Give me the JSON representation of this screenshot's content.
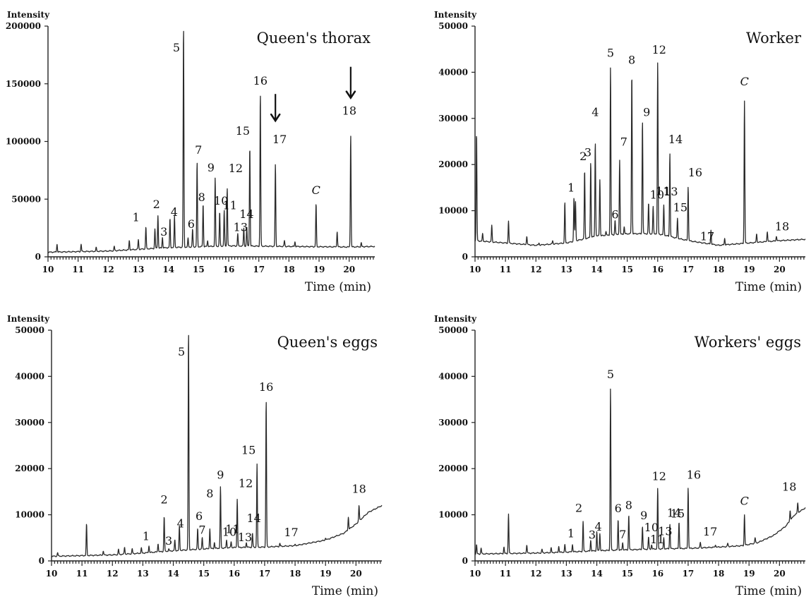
{
  "chart_data": [
    {
      "type": "line",
      "title": "Queen's thorax",
      "xlabel": "Time (min)",
      "ylabel": "Intensity",
      "xlim": [
        10,
        20.85
      ],
      "ylim": [
        0,
        200000
      ],
      "xticks": [
        "10",
        "11",
        "12",
        "13",
        "14",
        "15",
        "16",
        "17",
        "18",
        "19",
        "20"
      ],
      "yticks": [
        "0",
        "50000",
        "100000",
        "150000",
        "200000"
      ],
      "baseline": [
        [
          10,
          4000
        ],
        [
          12,
          5000
        ],
        [
          13,
          6500
        ],
        [
          14,
          8000
        ],
        [
          16,
          9500
        ],
        [
          18,
          9000
        ],
        [
          20,
          8500
        ],
        [
          20.85,
          9000
        ]
      ],
      "peaks": [
        {
          "x": 10.3,
          "y": 11000
        },
        {
          "x": 11.1,
          "y": 11000
        },
        {
          "x": 11.6,
          "y": 8000
        },
        {
          "x": 12.2,
          "y": 9000
        },
        {
          "x": 12.7,
          "y": 14000
        },
        {
          "x": 13.0,
          "y": 15000
        },
        {
          "x": 13.25,
          "y": 26000,
          "label": "1"
        },
        {
          "x": 13.55,
          "y": 24000
        },
        {
          "x": 13.65,
          "y": 36000,
          "label": "2"
        },
        {
          "x": 13.8,
          "y": 17000,
          "label": "3"
        },
        {
          "x": 14.05,
          "y": 33000,
          "label": "4"
        },
        {
          "x": 14.2,
          "y": 35000
        },
        {
          "x": 14.5,
          "y": 200000,
          "label": "5"
        },
        {
          "x": 14.65,
          "y": 16000
        },
        {
          "x": 14.8,
          "y": 24000,
          "label": "6"
        },
        {
          "x": 14.95,
          "y": 82000,
          "label": "7"
        },
        {
          "x": 15.15,
          "y": 46000,
          "label": "8"
        },
        {
          "x": 15.3,
          "y": 14000
        },
        {
          "x": 15.55,
          "y": 68000,
          "label": "9"
        },
        {
          "x": 15.7,
          "y": 39000,
          "label": "10"
        },
        {
          "x": 15.85,
          "y": 40000,
          "label": "11"
        },
        {
          "x": 15.95,
          "y": 60000,
          "label": "12"
        },
        {
          "x": 16.3,
          "y": 20000,
          "label": "13"
        },
        {
          "x": 16.5,
          "y": 25000,
          "label": "14"
        },
        {
          "x": 16.6,
          "y": 26000
        },
        {
          "x": 16.7,
          "y": 96000,
          "label": "15"
        },
        {
          "x": 17.05,
          "y": 142000,
          "label": "16"
        },
        {
          "x": 17.55,
          "y": 80000,
          "label": "17"
        },
        {
          "x": 17.85,
          "y": 14000
        },
        {
          "x": 18.2,
          "y": 13000
        },
        {
          "x": 18.9,
          "y": 46000,
          "label": "C"
        },
        {
          "x": 19.6,
          "y": 22000
        },
        {
          "x": 20.05,
          "y": 106000,
          "label": "18"
        },
        {
          "x": 20.4,
          "y": 12000
        }
      ],
      "arrows": [
        "17",
        "18"
      ]
    },
    {
      "type": "line",
      "title": "Worker",
      "xlabel": "Time (min)",
      "ylabel": "Intensity",
      "xlim": [
        10,
        20.85
      ],
      "ylim": [
        0,
        50000
      ],
      "xticks": [
        "10",
        "11",
        "12",
        "13",
        "14",
        "15",
        "16",
        "17",
        "18",
        "19",
        "20"
      ],
      "yticks": [
        "0",
        "10000",
        "20000",
        "30000",
        "40000",
        "50000"
      ],
      "baseline": [
        [
          10,
          3500
        ],
        [
          11,
          3000
        ],
        [
          12,
          2500
        ],
        [
          13,
          3000
        ],
        [
          14,
          4500
        ],
        [
          15,
          5000
        ],
        [
          16,
          5000
        ],
        [
          17,
          3500
        ],
        [
          18,
          2500
        ],
        [
          19,
          3000
        ],
        [
          20,
          3500
        ],
        [
          20.85,
          3800
        ]
      ],
      "peaks": [
        {
          "x": 10.05,
          "y": 27000
        },
        {
          "x": 10.25,
          "y": 5000
        },
        {
          "x": 10.55,
          "y": 6800
        },
        {
          "x": 11.1,
          "y": 7800
        },
        {
          "x": 11.7,
          "y": 4500
        },
        {
          "x": 12.1,
          "y": 3000
        },
        {
          "x": 12.55,
          "y": 3500
        },
        {
          "x": 12.95,
          "y": 11800
        },
        {
          "x": 13.25,
          "y": 12900,
          "label": "1"
        },
        {
          "x": 13.3,
          "y": 12000
        },
        {
          "x": 13.6,
          "y": 18800,
          "label": "2"
        },
        {
          "x": 13.8,
          "y": 20600,
          "label": "3"
        },
        {
          "x": 13.95,
          "y": 25000,
          "label": "4"
        },
        {
          "x": 14.1,
          "y": 16800
        },
        {
          "x": 14.3,
          "y": 5500
        },
        {
          "x": 14.45,
          "y": 41200,
          "label": "5"
        },
        {
          "x": 14.6,
          "y": 8000,
          "label": "6"
        },
        {
          "x": 14.75,
          "y": 21000,
          "label": "7"
        },
        {
          "x": 14.9,
          "y": 6500
        },
        {
          "x": 15.15,
          "y": 40000,
          "label": "8"
        },
        {
          "x": 15.5,
          "y": 29600,
          "label": "9"
        },
        {
          "x": 15.7,
          "y": 11700,
          "label": "10"
        },
        {
          "x": 15.85,
          "y": 10900,
          "label": "11"
        },
        {
          "x": 16.0,
          "y": 42200,
          "label": "12"
        },
        {
          "x": 16.2,
          "y": 11200,
          "label": "13"
        },
        {
          "x": 16.4,
          "y": 22500,
          "label": "14"
        },
        {
          "x": 16.65,
          "y": 8300,
          "label": "15"
        },
        {
          "x": 17.0,
          "y": 15300,
          "label": "16"
        },
        {
          "x": 17.35,
          "y": 3000,
          "label": "17"
        },
        {
          "x": 17.75,
          "y": 5800
        },
        {
          "x": 18.2,
          "y": 4000
        },
        {
          "x": 18.85,
          "y": 33800,
          "label": "C"
        },
        {
          "x": 19.25,
          "y": 5000
        },
        {
          "x": 19.6,
          "y": 5500
        },
        {
          "x": 19.9,
          "y": 4500,
          "label": "18"
        }
      ]
    },
    {
      "type": "line",
      "title": "Queen's eggs",
      "xlabel": "Time (min)",
      "ylabel": "Intensity",
      "xlim": [
        10,
        20.85
      ],
      "ylim": [
        0,
        50000
      ],
      "xticks": [
        "10",
        "11",
        "12",
        "13",
        "14",
        "15",
        "16",
        "17",
        "18",
        "19",
        "20"
      ],
      "yticks": [
        "0",
        "10000",
        "20000",
        "30000",
        "40000",
        "50000"
      ],
      "baseline": [
        [
          10,
          1000
        ],
        [
          12,
          1300
        ],
        [
          13,
          1700
        ],
        [
          14,
          2200
        ],
        [
          15,
          2600
        ],
        [
          16,
          2900
        ],
        [
          17,
          3000
        ],
        [
          18,
          3300
        ],
        [
          19,
          4500
        ],
        [
          19.6,
          6000
        ],
        [
          20,
          8000
        ],
        [
          20.4,
          10500
        ],
        [
          20.85,
          12000
        ]
      ],
      "peaks": [
        {
          "x": 10.2,
          "y": 1800
        },
        {
          "x": 11.15,
          "y": 8000
        },
        {
          "x": 11.7,
          "y": 2200
        },
        {
          "x": 12.2,
          "y": 2500
        },
        {
          "x": 12.4,
          "y": 3000
        },
        {
          "x": 12.65,
          "y": 2600
        },
        {
          "x": 12.95,
          "y": 2800
        },
        {
          "x": 13.2,
          "y": 3300,
          "label": "1"
        },
        {
          "x": 13.5,
          "y": 3800
        },
        {
          "x": 13.7,
          "y": 9700,
          "label": "2"
        },
        {
          "x": 13.85,
          "y": 2600,
          "label": "3"
        },
        {
          "x": 14.05,
          "y": 4500,
          "label": "4"
        },
        {
          "x": 14.2,
          "y": 7500
        },
        {
          "x": 14.5,
          "y": 50000,
          "label": "5"
        },
        {
          "x": 14.8,
          "y": 7000,
          "label": "6"
        },
        {
          "x": 14.95,
          "y": 5000,
          "label": "7"
        },
        {
          "x": 15.2,
          "y": 7000,
          "label": "8"
        },
        {
          "x": 15.35,
          "y": 4000
        },
        {
          "x": 15.55,
          "y": 16000,
          "label": "9"
        },
        {
          "x": 15.75,
          "y": 4500,
          "label": "10"
        },
        {
          "x": 15.9,
          "y": 4200,
          "label": "11"
        },
        {
          "x": 16.1,
          "y": 13500,
          "label": "12"
        },
        {
          "x": 16.4,
          "y": 4000,
          "label": "13"
        },
        {
          "x": 16.6,
          "y": 6000,
          "label": "14"
        },
        {
          "x": 16.75,
          "y": 21000,
          "label": "15"
        },
        {
          "x": 17.05,
          "y": 35000,
          "label": "16"
        },
        {
          "x": 17.5,
          "y": 3800,
          "label": "17"
        },
        {
          "x": 18.0,
          "y": 3500
        },
        {
          "x": 18.3,
          "y": 3500
        },
        {
          "x": 19.0,
          "y": 5000
        },
        {
          "x": 19.75,
          "y": 9500
        },
        {
          "x": 20.1,
          "y": 12000,
          "label": "18"
        }
      ]
    },
    {
      "type": "line",
      "title": "Workers' eggs",
      "xlabel": "Time (min)",
      "ylabel": "Intensity",
      "xlim": [
        10,
        20.85
      ],
      "ylim": [
        0,
        50000
      ],
      "xticks": [
        "10",
        "11",
        "12",
        "13",
        "14",
        "15",
        "16",
        "17",
        "18",
        "19",
        "20"
      ],
      "yticks": [
        "0",
        "10000",
        "20000",
        "30000",
        "40000",
        "50000"
      ],
      "baseline": [
        [
          10,
          1500
        ],
        [
          12,
          1700
        ],
        [
          13,
          1900
        ],
        [
          14,
          2200
        ],
        [
          15,
          2400
        ],
        [
          16,
          2600
        ],
        [
          17,
          2700
        ],
        [
          18,
          3000
        ],
        [
          18.8,
          3300
        ],
        [
          19.3,
          4000
        ],
        [
          19.8,
          5500
        ],
        [
          20.2,
          7500
        ],
        [
          20.5,
          10000
        ],
        [
          20.85,
          11500
        ]
      ],
      "peaks": [
        {
          "x": 10.05,
          "y": 3500
        },
        {
          "x": 10.2,
          "y": 2800
        },
        {
          "x": 10.95,
          "y": 3000
        },
        {
          "x": 11.1,
          "y": 10200
        },
        {
          "x": 11.7,
          "y": 3500
        },
        {
          "x": 12.2,
          "y": 2500
        },
        {
          "x": 12.5,
          "y": 2800
        },
        {
          "x": 12.75,
          "y": 3200
        },
        {
          "x": 12.95,
          "y": 3500
        },
        {
          "x": 13.2,
          "y": 3600,
          "label": "1"
        },
        {
          "x": 13.55,
          "y": 8500,
          "label": "2"
        },
        {
          "x": 13.8,
          "y": 4500,
          "label": "3"
        },
        {
          "x": 14.0,
          "y": 6300,
          "label": "4"
        },
        {
          "x": 14.1,
          "y": 6000
        },
        {
          "x": 14.45,
          "y": 37500,
          "label": "5"
        },
        {
          "x": 14.7,
          "y": 9000,
          "label": "6"
        },
        {
          "x": 14.85,
          "y": 4000,
          "label": "7"
        },
        {
          "x": 15.05,
          "y": 10000,
          "label": "8"
        },
        {
          "x": 15.5,
          "y": 7500,
          "label": "9"
        },
        {
          "x": 15.7,
          "y": 5200,
          "label": "10"
        },
        {
          "x": 15.8,
          "y": 3500,
          "label": "11"
        },
        {
          "x": 16.0,
          "y": 15700,
          "label": "12"
        },
        {
          "x": 16.2,
          "y": 5000,
          "label": "13"
        },
        {
          "x": 16.4,
          "y": 8000,
          "label": "14"
        },
        {
          "x": 16.7,
          "y": 8500,
          "label": "15"
        },
        {
          "x": 17.0,
          "y": 16000,
          "label": "16"
        },
        {
          "x": 17.4,
          "y": 4000,
          "label": "17"
        },
        {
          "x": 17.9,
          "y": 3500
        },
        {
          "x": 18.3,
          "y": 3800
        },
        {
          "x": 18.85,
          "y": 10000,
          "label": "C"
        },
        {
          "x": 19.2,
          "y": 5000
        },
        {
          "x": 20.35,
          "y": 11000
        },
        {
          "x": 20.6,
          "y": 12500,
          "label": "18"
        }
      ]
    }
  ]
}
